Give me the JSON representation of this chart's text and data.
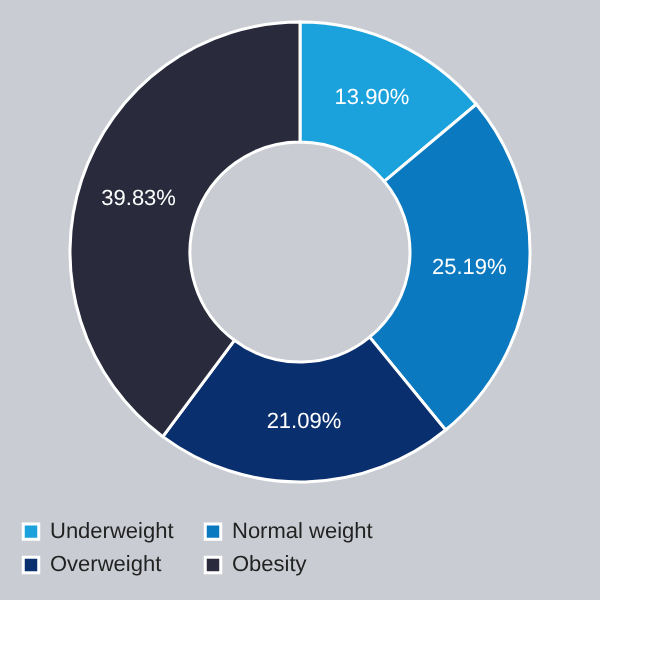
{
  "chart_data": {
    "type": "donut",
    "categories": [
      "Underweight",
      "Normal weight",
      "Overweight",
      "Obesity"
    ],
    "values": [
      13.9,
      25.19,
      21.09,
      39.83
    ],
    "colors": [
      "#1ba1dc",
      "#0b79c0",
      "#0a2f6e",
      "#292b3d"
    ],
    "value_labels": [
      "13.90%",
      "25.19%",
      "21.09%",
      "39.83%"
    ],
    "legend": "bottom"
  }
}
